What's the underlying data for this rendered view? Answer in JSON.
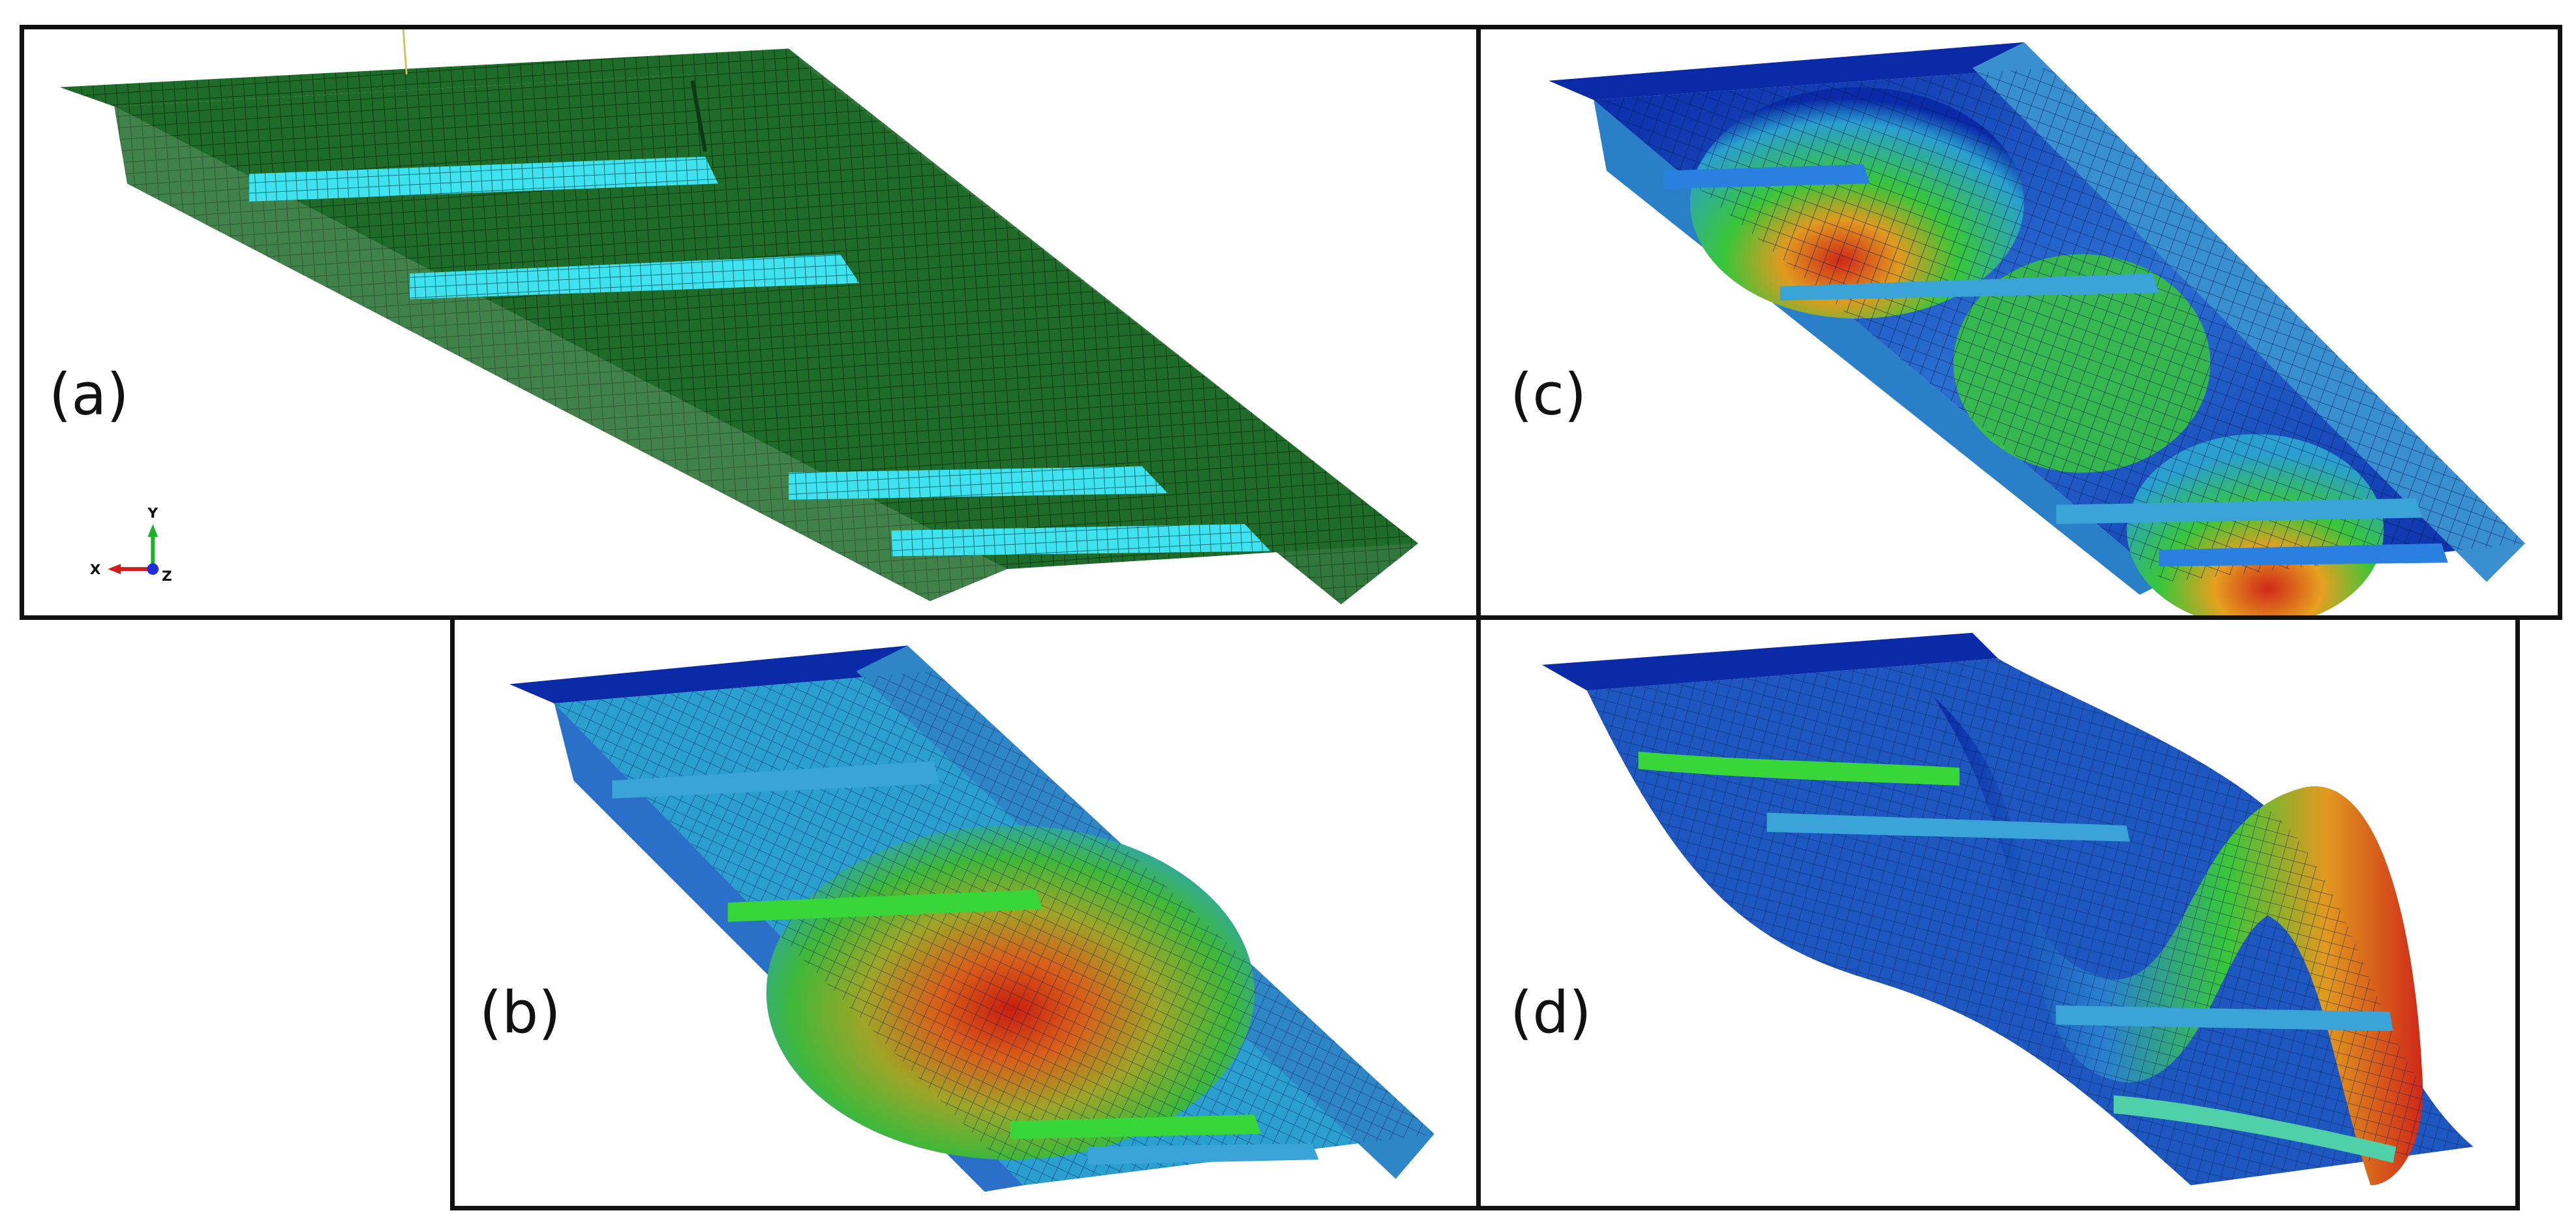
{
  "panels": [
    {
      "id": "a",
      "label": "(a)",
      "state": "undeformed mesh",
      "color": "#1f6b2a"
    },
    {
      "id": "b",
      "label": "(b)",
      "state": "deformed contour",
      "color": "#c82a1a"
    },
    {
      "id": "c",
      "label": "(c)",
      "state": "deformed contour",
      "color": "#c82a1a"
    },
    {
      "id": "d",
      "label": "(d)",
      "state": "deformed contour",
      "color": "#c82a1a"
    }
  ],
  "triad": {
    "x": "X",
    "y": "Y",
    "z": "Z"
  },
  "colors": {
    "mesh_green": "#1f6b2a",
    "stiffener_cyan": "#3fe3ef",
    "contour_blue": "#0a2aa8",
    "contour_light": "#3aa3d8",
    "contour_green": "#39c63a",
    "contour_red": "#d02818",
    "border": "#111111"
  }
}
